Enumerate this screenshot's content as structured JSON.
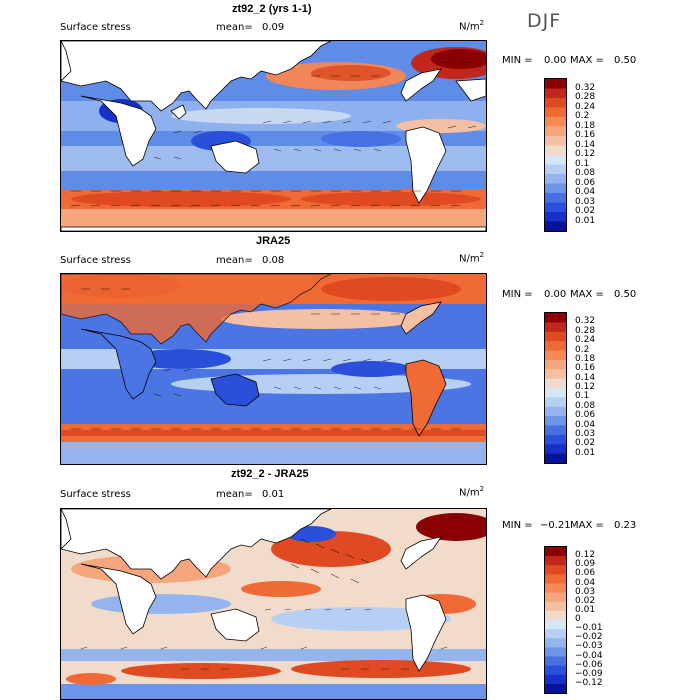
{
  "season": "DJF",
  "panels": [
    {
      "title": "zt92_2 (yrs 1-1)",
      "field": "Surface stress",
      "mean_label": "mean=",
      "mean": "0.09",
      "units": "N/m",
      "units_sup": "2",
      "min_label": "MIN =",
      "min": "0.00",
      "max_label": "MAX =",
      "max": "0.50",
      "levels": [
        "0.32",
        "0.28",
        "0.24",
        "0.2",
        "0.18",
        "0.16",
        "0.14",
        "0.12",
        "0.1",
        "0.08",
        "0.06",
        "0.04",
        "0.03",
        "0.02",
        "0.01"
      ],
      "colors": [
        "#8b0000",
        "#c1281b",
        "#df4a22",
        "#f06a35",
        "#f58a56",
        "#f6a67c",
        "#f3c0a4",
        "#f1dccc",
        "#d6e6f7",
        "#b6cff3",
        "#94b4ee",
        "#6c94e8",
        "#4771e3",
        "#2a4fda",
        "#1730c9",
        "#08139b"
      ]
    },
    {
      "title": "JRA25",
      "field": "Surface stress",
      "mean_label": "mean=",
      "mean": "0.08",
      "units": "N/m",
      "units_sup": "2",
      "min_label": "MIN =",
      "min": "0.00",
      "max_label": "MAX =",
      "max": "0.50",
      "levels": [
        "0.32",
        "0.28",
        "0.24",
        "0.2",
        "0.18",
        "0.16",
        "0.14",
        "0.12",
        "0.1",
        "0.08",
        "0.06",
        "0.04",
        "0.03",
        "0.02",
        "0.01"
      ],
      "colors": [
        "#8b0000",
        "#c1281b",
        "#df4a22",
        "#f06a35",
        "#f58a56",
        "#f6a67c",
        "#f3c0a4",
        "#f1dccc",
        "#d6e6f7",
        "#b6cff3",
        "#94b4ee",
        "#6c94e8",
        "#4771e3",
        "#2a4fda",
        "#1730c9",
        "#08139b"
      ]
    },
    {
      "title": "zt92_2 - JRA25",
      "field": "Surface stress",
      "mean_label": "mean=",
      "mean": "0.01",
      "units": "N/m",
      "units_sup": "2",
      "min_label": "MIN =",
      "min": "−0.21",
      "max_label": "MAX =",
      "max": "0.23",
      "levels": [
        "0.12",
        "0.09",
        "0.06",
        "0.04",
        "0.03",
        "0.02",
        "0.01",
        "0",
        "−0.01",
        "−0.02",
        "−0.03",
        "−0.04",
        "−0.06",
        "−0.09",
        "−0.12"
      ],
      "colors": [
        "#8b0000",
        "#c1281b",
        "#df4a22",
        "#f06a35",
        "#f58a56",
        "#f6a67c",
        "#f3c0a4",
        "#f1dccc",
        "#d6e6f7",
        "#b6cff3",
        "#94b4ee",
        "#6c94e8",
        "#4771e3",
        "#2a4fda",
        "#1730c9",
        "#08139b"
      ]
    }
  ]
}
